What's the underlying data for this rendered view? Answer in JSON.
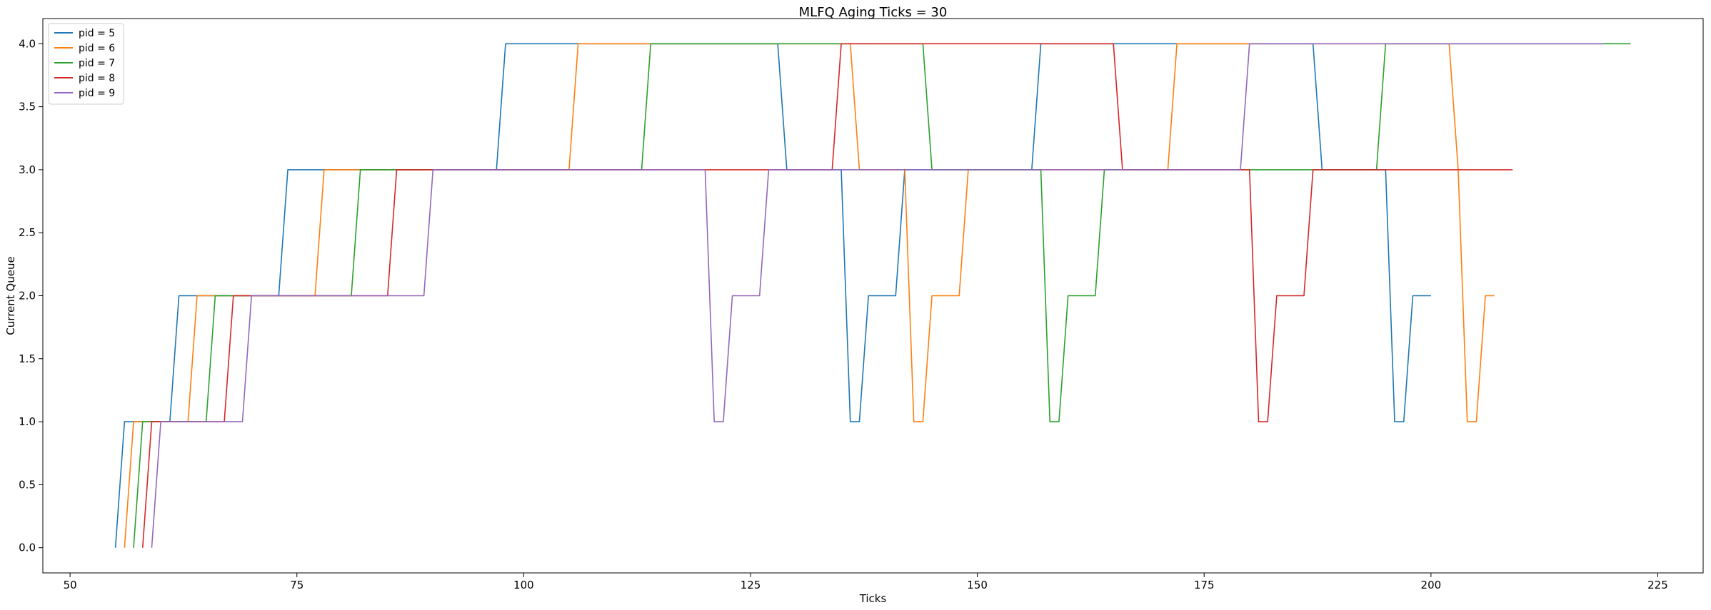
{
  "chart_data": {
    "type": "line",
    "title": "MLFQ Aging Ticks = 30",
    "xlabel": "Ticks",
    "ylabel": "Current Queue",
    "xlim": [
      47,
      230
    ],
    "ylim": [
      -0.2,
      4.2
    ],
    "x_ticks": [
      50,
      75,
      100,
      125,
      150,
      175,
      200,
      225
    ],
    "x_tick_labels": [
      "50",
      "75",
      "100",
      "125",
      "150",
      "175",
      "200",
      "225"
    ],
    "y_ticks": [
      0,
      0.5,
      1,
      1.5,
      2,
      2.5,
      3,
      3.5,
      4
    ],
    "y_tick_labels": [
      "0.0",
      "0.5",
      "1.0",
      "1.5",
      "2.0",
      "2.5",
      "3.0",
      "3.5",
      "4.0"
    ],
    "grid": false,
    "legend_position": "top-left",
    "series": [
      {
        "name": "pid = 5",
        "color": "#1f77b4",
        "points": [
          [
            55,
            0
          ],
          [
            56,
            1
          ],
          [
            61,
            1
          ],
          [
            62,
            2
          ],
          [
            73,
            2
          ],
          [
            74,
            3
          ],
          [
            97,
            3
          ],
          [
            98,
            4
          ],
          [
            128,
            4
          ],
          [
            129,
            3
          ],
          [
            135,
            3
          ],
          [
            136,
            1
          ],
          [
            137,
            1
          ],
          [
            138,
            2
          ],
          [
            141,
            2
          ],
          [
            142,
            3
          ],
          [
            156,
            3
          ],
          [
            157,
            4
          ],
          [
            187,
            4
          ],
          [
            188,
            3
          ],
          [
            195,
            3
          ],
          [
            196,
            1
          ],
          [
            197,
            1
          ],
          [
            198,
            2
          ],
          [
            200,
            2
          ]
        ]
      },
      {
        "name": "pid = 6",
        "color": "#ff7f0e",
        "points": [
          [
            56,
            0
          ],
          [
            57,
            1
          ],
          [
            63,
            1
          ],
          [
            64,
            2
          ],
          [
            77,
            2
          ],
          [
            78,
            3
          ],
          [
            105,
            3
          ],
          [
            106,
            4
          ],
          [
            136,
            4
          ],
          [
            137,
            3
          ],
          [
            142,
            3
          ],
          [
            143,
            1
          ],
          [
            144,
            1
          ],
          [
            145,
            2
          ],
          [
            148,
            2
          ],
          [
            149,
            3
          ],
          [
            171,
            3
          ],
          [
            172,
            4
          ],
          [
            202,
            4
          ],
          [
            203,
            3
          ],
          [
            204,
            1
          ],
          [
            205,
            1
          ],
          [
            206,
            2
          ],
          [
            207,
            2
          ]
        ]
      },
      {
        "name": "pid = 7",
        "color": "#2ca02c",
        "points": [
          [
            57,
            0
          ],
          [
            58,
            1
          ],
          [
            65,
            1
          ],
          [
            66,
            2
          ],
          [
            81,
            2
          ],
          [
            82,
            3
          ],
          [
            113,
            3
          ],
          [
            114,
            4
          ],
          [
            144,
            4
          ],
          [
            145,
            3
          ],
          [
            157,
            3
          ],
          [
            158,
            1
          ],
          [
            159,
            1
          ],
          [
            160,
            2
          ],
          [
            163,
            2
          ],
          [
            164,
            3
          ],
          [
            194,
            3
          ],
          [
            195,
            4
          ],
          [
            222,
            4
          ]
        ]
      },
      {
        "name": "pid = 8",
        "color": "#d62728",
        "points": [
          [
            58,
            0
          ],
          [
            59,
            1
          ],
          [
            67,
            1
          ],
          [
            68,
            2
          ],
          [
            85,
            2
          ],
          [
            86,
            3
          ],
          [
            134,
            3
          ],
          [
            135,
            4
          ],
          [
            165,
            4
          ],
          [
            166,
            3
          ],
          [
            180,
            3
          ],
          [
            181,
            1
          ],
          [
            182,
            1
          ],
          [
            183,
            2
          ],
          [
            186,
            2
          ],
          [
            187,
            3
          ],
          [
            209,
            3
          ]
        ]
      },
      {
        "name": "pid = 9",
        "color": "#9467bd",
        "points": [
          [
            59,
            0
          ],
          [
            60,
            1
          ],
          [
            69,
            1
          ],
          [
            70,
            2
          ],
          [
            89,
            2
          ],
          [
            90,
            3
          ],
          [
            120,
            3
          ],
          [
            121,
            1
          ],
          [
            122,
            1
          ],
          [
            123,
            2
          ],
          [
            126,
            2
          ],
          [
            127,
            3
          ],
          [
            179,
            3
          ],
          [
            180,
            4
          ],
          [
            219,
            4
          ]
        ]
      }
    ]
  }
}
